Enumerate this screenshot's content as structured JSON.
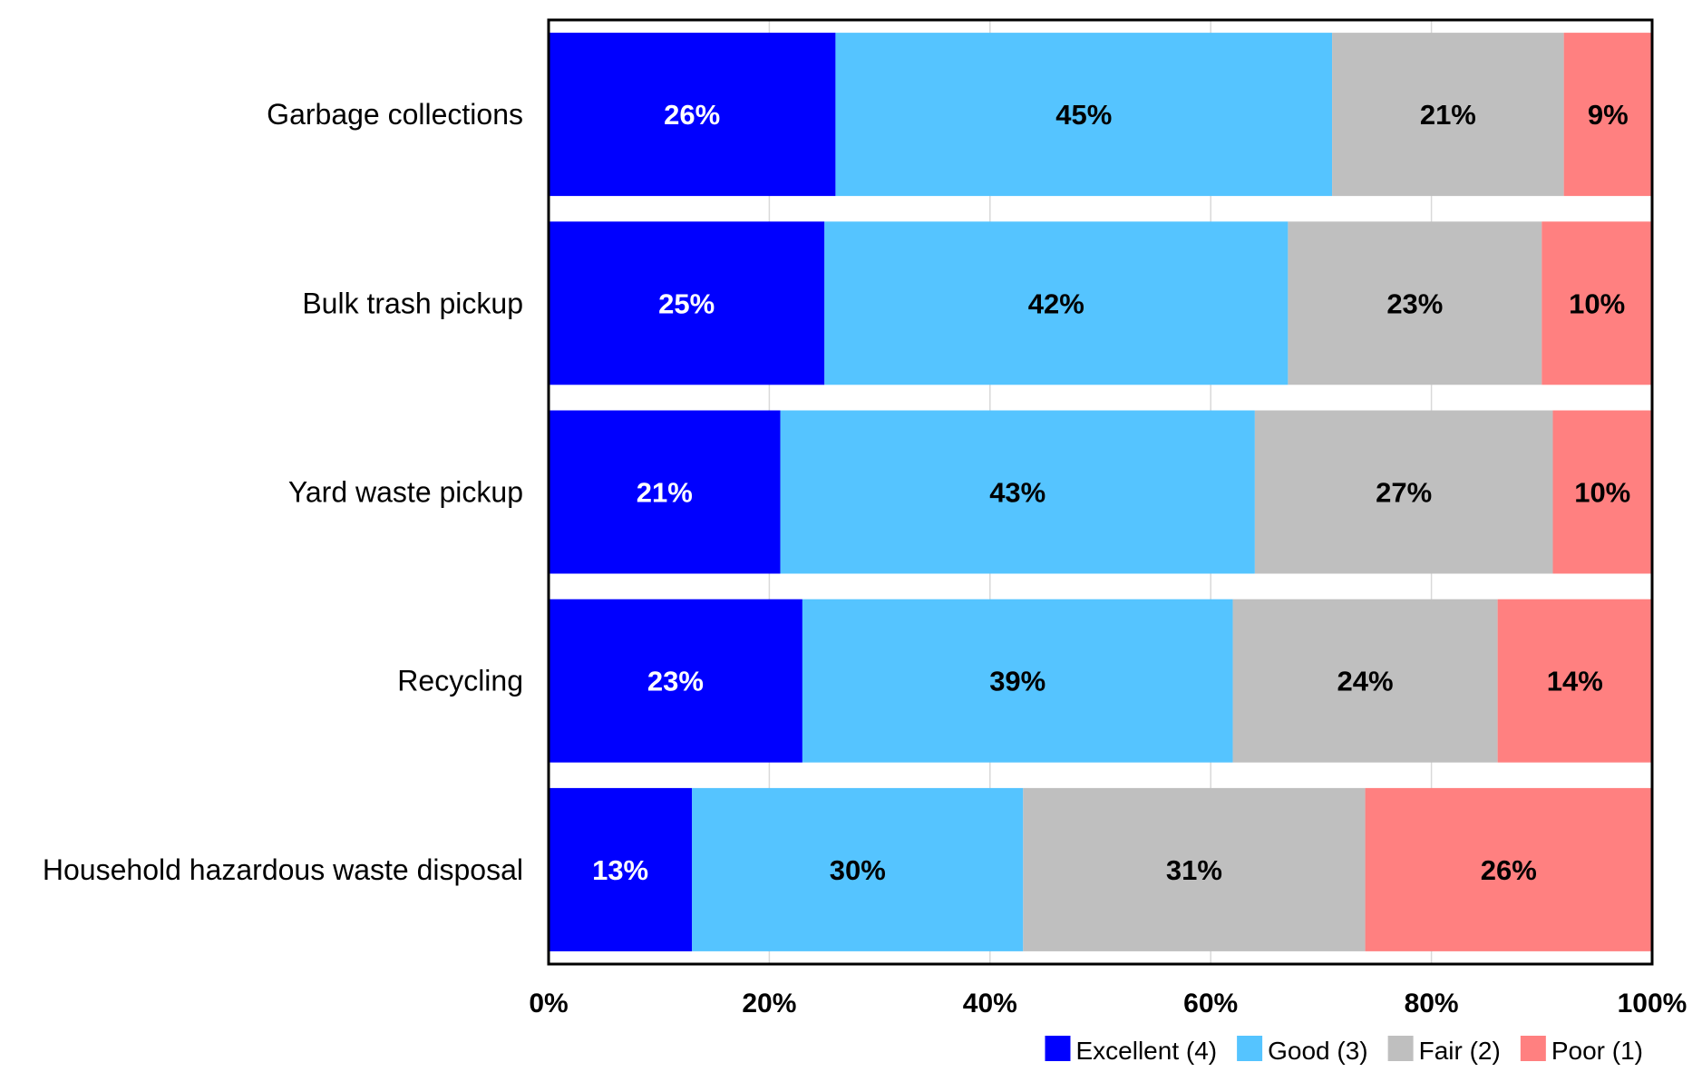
{
  "chart_data": {
    "type": "bar",
    "orientation": "horizontal",
    "stacked": true,
    "title": "",
    "xlabel": "",
    "ylabel": "",
    "xlim": [
      0,
      100
    ],
    "x_ticks": [
      "0%",
      "20%",
      "40%",
      "60%",
      "80%",
      "100%"
    ],
    "grid": true,
    "legend_position": "bottom-right",
    "categories": [
      "Garbage collections",
      "Bulk trash pickup",
      "Yard waste pickup",
      "Recycling",
      "Household hazardous waste disposal"
    ],
    "series": [
      {
        "name": "Excellent (4)",
        "color": "#0000FF",
        "label_color": "#FFFFFF",
        "values": [
          26,
          25,
          21,
          23,
          13
        ],
        "labels": [
          "26%",
          "25%",
          "21%",
          "23%",
          "13%"
        ]
      },
      {
        "name": "Good (3)",
        "color": "#55C4FF",
        "label_color": "#000000",
        "values": [
          45,
          42,
          43,
          39,
          30
        ],
        "labels": [
          "45%",
          "42%",
          "43%",
          "39%",
          "30%"
        ]
      },
      {
        "name": "Fair (2)",
        "color": "#BFBFBF",
        "label_color": "#000000",
        "values": [
          21,
          23,
          27,
          24,
          31
        ],
        "labels": [
          "21%",
          "23%",
          "27%",
          "24%",
          "31%"
        ]
      },
      {
        "name": "Poor (1)",
        "color": "#FF8080",
        "label_color": "#000000",
        "values": [
          9,
          10,
          10,
          14,
          26
        ],
        "labels": [
          "9%",
          "10%",
          "10%",
          "14%",
          "26%"
        ]
      }
    ]
  }
}
